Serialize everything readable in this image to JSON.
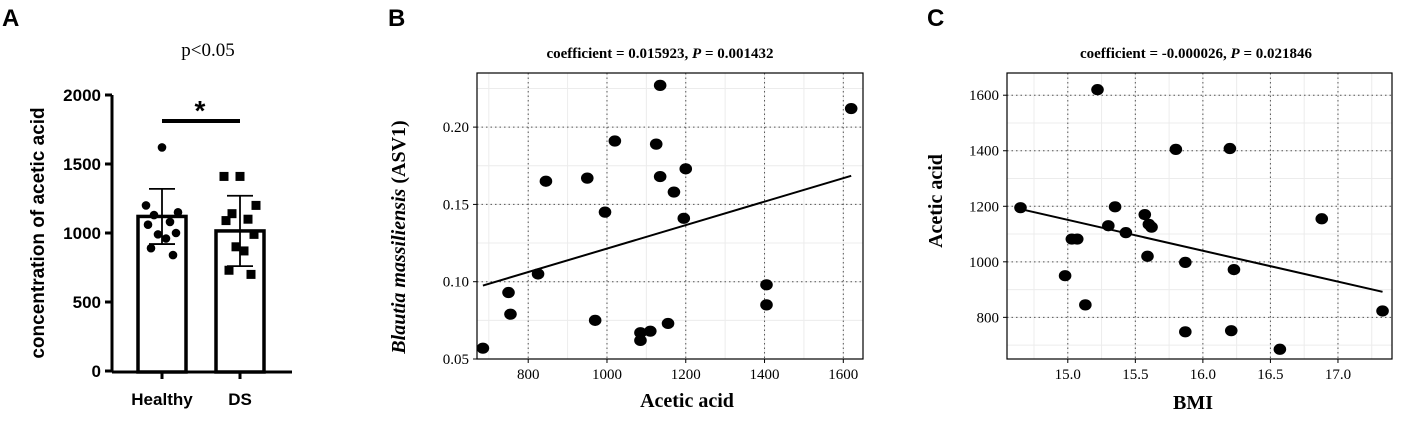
{
  "panels": {
    "a": "A",
    "b": "B",
    "c": "C"
  },
  "chart_data": [
    {
      "type": "bar",
      "title": "p<0.05",
      "significance_marker": "*",
      "ylabel": "concentration of acetic acid",
      "xlabel": "",
      "ylim": [
        0,
        2000
      ],
      "yticks": [
        0,
        500,
        1000,
        1500,
        2000
      ],
      "categories": [
        "Healthy",
        "DS"
      ],
      "values": [
        1120,
        1015
      ],
      "error": [
        200,
        255
      ],
      "points": [
        {
          "group": "Healthy",
          "marker": "circle",
          "values": [
            1620,
            1200,
            1150,
            1130,
            1080,
            1060,
            1000,
            990,
            960,
            890,
            840
          ]
        },
        {
          "group": "DS",
          "marker": "square",
          "values": [
            1410,
            1410,
            1200,
            1140,
            1100,
            1090,
            990,
            900,
            870,
            730,
            700
          ]
        }
      ]
    },
    {
      "type": "scatter",
      "title": "coefficient = 0.015923, P = 0.001432",
      "title_parts": {
        "prefix": "coefficient = 0.015923, ",
        "p": "P",
        "suffix": " = 0.001432"
      },
      "xlabel": "Acetic acid",
      "ylabel_italic": "Blautia massiliensis",
      "ylabel_rest": " (ASV1)",
      "xlim": [
        670,
        1650
      ],
      "ylim": [
        0.05,
        0.235
      ],
      "xticks": [
        800,
        1000,
        1200,
        1400,
        1600
      ],
      "yticks": [
        0.05,
        0.1,
        0.15,
        0.2
      ],
      "ytick_labels": [
        "0.05",
        "0.10",
        "0.15",
        "0.20"
      ],
      "grid": true,
      "x": [
        685,
        750,
        755,
        825,
        845,
        950,
        970,
        995,
        1020,
        1085,
        1085,
        1110,
        1125,
        1135,
        1135,
        1155,
        1170,
        1195,
        1200,
        1405,
        1405,
        1620
      ],
      "y": [
        0.057,
        0.093,
        0.079,
        0.105,
        0.165,
        0.167,
        0.075,
        0.145,
        0.191,
        0.067,
        0.062,
        0.068,
        0.189,
        0.227,
        0.168,
        0.073,
        0.158,
        0.141,
        0.173,
        0.098,
        0.085,
        0.212
      ],
      "fit_line": {
        "x": [
          685,
          1620
        ],
        "y": [
          0.0975,
          0.1685
        ]
      }
    },
    {
      "type": "scatter",
      "title": "coefficient = -0.000026, P = 0.021846",
      "title_parts": {
        "prefix": "coefficient = -0.000026, ",
        "p": "P",
        "suffix": " = 0.021846"
      },
      "xlabel": "BMI",
      "ylabel": "Acetic acid",
      "xlim": [
        14.55,
        17.4
      ],
      "ylim": [
        650,
        1680
      ],
      "xticks": [
        15.0,
        15.5,
        16.0,
        16.5,
        17.0
      ],
      "xtick_labels": [
        "15.0",
        "15.5",
        "16.0",
        "16.5",
        "17.0"
      ],
      "yticks": [
        800,
        1000,
        1200,
        1400,
        1600
      ],
      "grid": true,
      "x": [
        14.65,
        14.98,
        15.03,
        15.07,
        15.13,
        15.22,
        15.3,
        15.35,
        15.43,
        15.57,
        15.59,
        15.6,
        15.62,
        15.8,
        15.87,
        15.87,
        16.2,
        16.21,
        16.23,
        16.57,
        16.88,
        17.33
      ],
      "y": [
        1195,
        950,
        1082,
        1082,
        845,
        1620,
        1130,
        1198,
        1105,
        1170,
        1020,
        1135,
        1125,
        1405,
        998,
        748,
        1408,
        752,
        972,
        685,
        1155,
        823
      ],
      "fit_line": {
        "x": [
          14.65,
          17.33
        ],
        "y": [
          1190,
          892
        ]
      }
    }
  ]
}
